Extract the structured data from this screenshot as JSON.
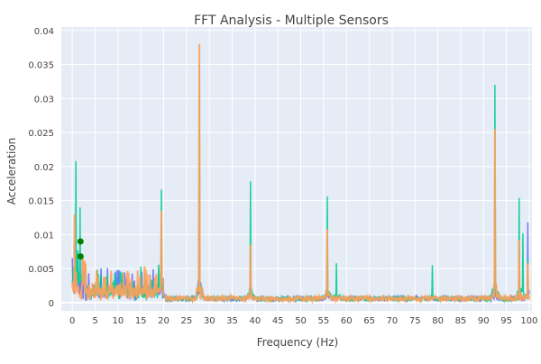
{
  "chart_data": {
    "type": "line",
    "title": "FFT Analysis - Multiple Sensors",
    "xlabel": "Frequency (Hz)",
    "ylabel": "Acceleration",
    "xlim": [
      -2.4,
      100.6
    ],
    "ylim": [
      -0.0012,
      0.0405
    ],
    "xticks": [
      0,
      5,
      10,
      15,
      20,
      25,
      30,
      35,
      40,
      45,
      50,
      55,
      60,
      65,
      70,
      75,
      80,
      85,
      90,
      95,
      100
    ],
    "yticks": [
      0,
      0.005,
      0.01,
      0.015,
      0.02,
      0.025,
      0.03,
      0.035,
      0.04
    ],
    "ytick_labels": [
      "0",
      "0.005",
      "0.01",
      "0.015",
      "0.02",
      "0.025",
      "0.03",
      "0.035",
      "0.04"
    ],
    "grid": true,
    "legend": "none",
    "background": "#e5ecf6",
    "series": [
      {
        "color": "#636efa",
        "baseline": 0.0006,
        "peaks": [
          [
            0.5,
            0.009
          ],
          [
            19.5,
            0.012
          ],
          [
            27.8,
            0.03
          ],
          [
            39,
            0.008
          ],
          [
            55.8,
            0.009
          ],
          [
            92.5,
            0.015
          ],
          [
            97.8,
            0.008
          ],
          [
            99.7,
            0.0118
          ]
        ]
      },
      {
        "color": "#00cc96",
        "baseline": 0.0006,
        "peaks": [
          [
            0.8,
            0.0207
          ],
          [
            1.7,
            0.014
          ],
          [
            19.5,
            0.0166
          ],
          [
            27.8,
            0.035
          ],
          [
            39,
            0.0178
          ],
          [
            55.8,
            0.0156
          ],
          [
            57.8,
            0.0058
          ],
          [
            78.8,
            0.0055
          ],
          [
            92.5,
            0.032
          ],
          [
            97.8,
            0.0152
          ],
          [
            98.6,
            0.0102
          ],
          [
            99.7,
            0.0065
          ]
        ]
      },
      {
        "color": "#ffa15a",
        "baseline": 0.0006,
        "peaks": [
          [
            0.5,
            0.013
          ],
          [
            19.5,
            0.0135
          ],
          [
            27.8,
            0.038
          ],
          [
            39,
            0.0085
          ],
          [
            55.8,
            0.0108
          ],
          [
            92.5,
            0.0255
          ],
          [
            97.8,
            0.0092
          ],
          [
            99.7,
            0.0058
          ]
        ]
      }
    ],
    "markers": {
      "color": "#008000",
      "points": [
        [
          1.8,
          0.009
        ],
        [
          1.8,
          0.0068
        ]
      ]
    }
  }
}
